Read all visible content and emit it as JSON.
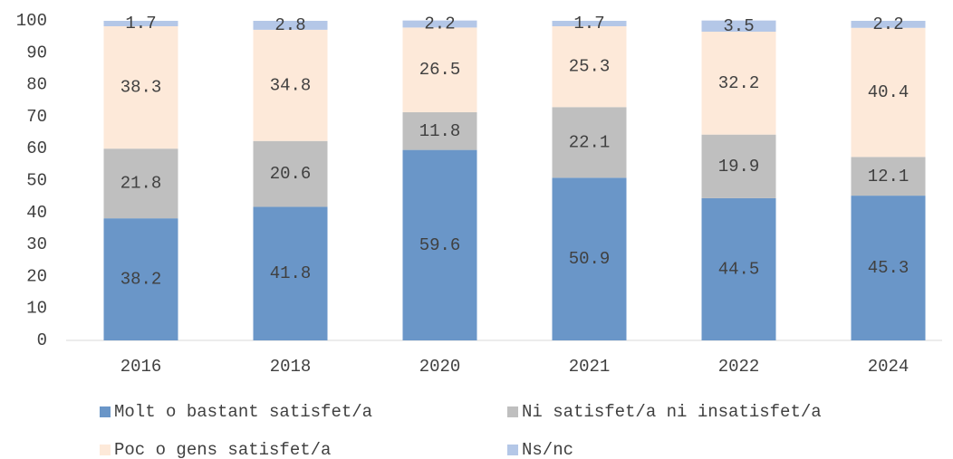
{
  "chart_data": {
    "type": "stacked_bar",
    "categories": [
      "2016",
      "2018",
      "2020",
      "2021",
      "2022",
      "2024"
    ],
    "series": [
      {
        "name": "Molt o bastant satisfet/a",
        "color": "#6a96c8",
        "values": [
          38.2,
          41.8,
          59.6,
          50.9,
          44.5,
          45.3
        ]
      },
      {
        "name": "Ni satisfet/a ni insatisfet/a",
        "color": "#bfbfbf",
        "values": [
          21.8,
          20.6,
          11.8,
          22.1,
          19.9,
          12.1
        ]
      },
      {
        "name": "Poc o gens satisfet/a",
        "color": "#fde9d9",
        "values": [
          38.3,
          34.8,
          26.5,
          25.3,
          32.2,
          40.4
        ]
      },
      {
        "name": "Ns/nc",
        "color": "#b4c7e7",
        "values": [
          1.7,
          2.8,
          2.2,
          1.7,
          3.5,
          2.2
        ]
      }
    ],
    "ylim": [
      0,
      100
    ],
    "yticks": [
      0,
      10,
      20,
      30,
      40,
      50,
      60,
      70,
      80,
      90,
      100
    ],
    "grid": false,
    "legend": "bottom"
  }
}
